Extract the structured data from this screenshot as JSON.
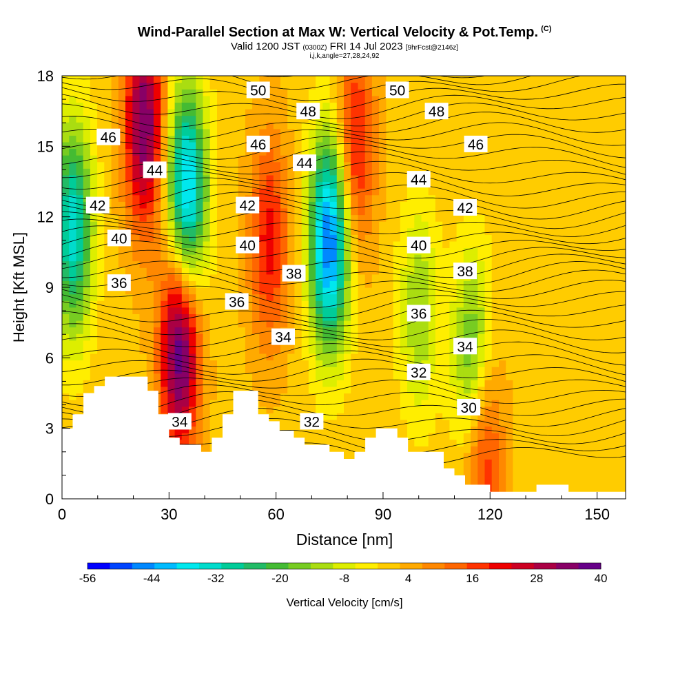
{
  "header": {
    "title": "Wind-Parallel Section at Max W: Vertical Velocity & Pot.Temp.",
    "title_units": "(C)",
    "valid_prefix": "Valid 1200 JST",
    "valid_utc": "(0300Z)",
    "valid_date": "FRI 14 Jul 2023",
    "forecast": "[9hrFcst@2146z]",
    "indices": "i,j,k,angle=27,28,24,92"
  },
  "colorbar": {
    "label": "Vertical Velocity [cm/s]",
    "tick_labels": [
      "-56",
      "-44",
      "-32",
      "-20",
      "-8",
      "4",
      "16",
      "28",
      "40"
    ],
    "colors": [
      "#0000ff",
      "#0044ff",
      "#0088ff",
      "#00bbff",
      "#00e8ee",
      "#00dccc",
      "#00cc99",
      "#22bb66",
      "#44bb33",
      "#77cc22",
      "#aadd11",
      "#ddee00",
      "#ffee00",
      "#ffcc00",
      "#ffaa00",
      "#ff8800",
      "#ff6600",
      "#ff3300",
      "#ee0000",
      "#cc0022",
      "#aa0044",
      "#880066",
      "#660088"
    ]
  },
  "chart_data": {
    "type": "heatmap",
    "title": "Wind-Parallel Section at Max W: Vertical Velocity & Pot.Temp.",
    "xlabel": "Distance [nm]",
    "ylabel": "Height [Kft MSL]",
    "xlim": [
      0,
      158
    ],
    "ylim": [
      0,
      18
    ],
    "x_ticks": [
      "0",
      "30",
      "60",
      "90",
      "120",
      "150"
    ],
    "y_ticks": [
      "0",
      "3",
      "6",
      "9",
      "12",
      "15",
      "18"
    ],
    "colorbar_range": [
      -56,
      40
    ],
    "terrain_profile": [
      [
        0,
        3
      ],
      [
        3,
        3
      ],
      [
        3,
        3.6
      ],
      [
        6,
        3.6
      ],
      [
        6,
        4.5
      ],
      [
        9,
        4.5
      ],
      [
        9,
        4.8
      ],
      [
        12,
        4.8
      ],
      [
        12,
        5.2
      ],
      [
        24,
        5.2
      ],
      [
        24,
        4.6
      ],
      [
        27,
        4.6
      ],
      [
        27,
        3.6
      ],
      [
        30,
        3.6
      ],
      [
        30,
        2.6
      ],
      [
        33,
        2.6
      ],
      [
        33,
        2.3
      ],
      [
        39,
        2.3
      ],
      [
        39,
        2.0
      ],
      [
        42,
        2.0
      ],
      [
        42,
        2.6
      ],
      [
        45,
        2.6
      ],
      [
        45,
        3.6
      ],
      [
        48,
        3.6
      ],
      [
        48,
        4.6
      ],
      [
        55,
        4.6
      ],
      [
        55,
        3.6
      ],
      [
        58,
        3.6
      ],
      [
        58,
        3.3
      ],
      [
        61,
        3.3
      ],
      [
        61,
        2.9
      ],
      [
        65,
        2.9
      ],
      [
        65,
        2.6
      ],
      [
        68,
        2.6
      ],
      [
        68,
        2.3
      ],
      [
        75,
        2.3
      ],
      [
        75,
        2.0
      ],
      [
        79,
        2.0
      ],
      [
        79,
        1.7
      ],
      [
        82,
        1.7
      ],
      [
        82,
        2.0
      ],
      [
        85,
        2.0
      ],
      [
        85,
        2.6
      ],
      [
        88,
        2.6
      ],
      [
        88,
        3.0
      ],
      [
        94,
        3.0
      ],
      [
        94,
        2.6
      ],
      [
        97,
        2.6
      ],
      [
        97,
        2.0
      ],
      [
        107,
        2.0
      ],
      [
        107,
        1.3
      ],
      [
        110,
        1.3
      ],
      [
        110,
        1.0
      ],
      [
        113,
        1.0
      ],
      [
        113,
        0.6
      ],
      [
        120,
        0.6
      ],
      [
        120,
        0.3
      ],
      [
        133,
        0.3
      ],
      [
        133,
        0.6
      ],
      [
        142,
        0.6
      ],
      [
        142,
        0.3
      ],
      [
        158,
        0.3
      ],
      [
        158,
        0
      ]
    ],
    "w_features": [
      {
        "x": 3,
        "y": 11.5,
        "w": -35
      },
      {
        "x": 23,
        "y": 16.0,
        "w": 35
      },
      {
        "x": 33,
        "y": 6.5,
        "w": 40
      },
      {
        "x": 35,
        "y": 13.0,
        "w": -44
      },
      {
        "x": 58,
        "y": 11.0,
        "w": 20
      },
      {
        "x": 75,
        "y": 11.0,
        "w": -50
      },
      {
        "x": 82,
        "y": 15.0,
        "w": 22
      },
      {
        "x": 100,
        "y": 8.0,
        "w": -15
      },
      {
        "x": 115,
        "y": 6.0,
        "w": -22
      },
      {
        "x": 118,
        "y": 2.0,
        "w": 20
      }
    ],
    "theta_contour_labels": [
      {
        "x": 13,
        "y": 15.4,
        "text": "46"
      },
      {
        "x": 26,
        "y": 14.0,
        "text": "44"
      },
      {
        "x": 10,
        "y": 12.5,
        "text": "42"
      },
      {
        "x": 16,
        "y": 11.1,
        "text": "40"
      },
      {
        "x": 16,
        "y": 9.2,
        "text": "36"
      },
      {
        "x": 55,
        "y": 17.4,
        "text": "50"
      },
      {
        "x": 69,
        "y": 16.5,
        "text": "48"
      },
      {
        "x": 55,
        "y": 15.1,
        "text": "46"
      },
      {
        "x": 68,
        "y": 14.3,
        "text": "44"
      },
      {
        "x": 52,
        "y": 12.5,
        "text": "42"
      },
      {
        "x": 52,
        "y": 10.8,
        "text": "40"
      },
      {
        "x": 65,
        "y": 9.6,
        "text": "38"
      },
      {
        "x": 49,
        "y": 8.4,
        "text": "36"
      },
      {
        "x": 62,
        "y": 6.9,
        "text": "34"
      },
      {
        "x": 33,
        "y": 3.3,
        "text": "34"
      },
      {
        "x": 70,
        "y": 3.3,
        "text": "32"
      },
      {
        "x": 94,
        "y": 17.4,
        "text": "50"
      },
      {
        "x": 105,
        "y": 16.5,
        "text": "48"
      },
      {
        "x": 116,
        "y": 15.1,
        "text": "46"
      },
      {
        "x": 100,
        "y": 13.6,
        "text": "44"
      },
      {
        "x": 113,
        "y": 12.4,
        "text": "42"
      },
      {
        "x": 100,
        "y": 10.8,
        "text": "40"
      },
      {
        "x": 113,
        "y": 9.7,
        "text": "38"
      },
      {
        "x": 100,
        "y": 7.9,
        "text": "36"
      },
      {
        "x": 113,
        "y": 6.5,
        "text": "34"
      },
      {
        "x": 100,
        "y": 5.4,
        "text": "32"
      },
      {
        "x": 114,
        "y": 3.9,
        "text": "30"
      }
    ]
  }
}
